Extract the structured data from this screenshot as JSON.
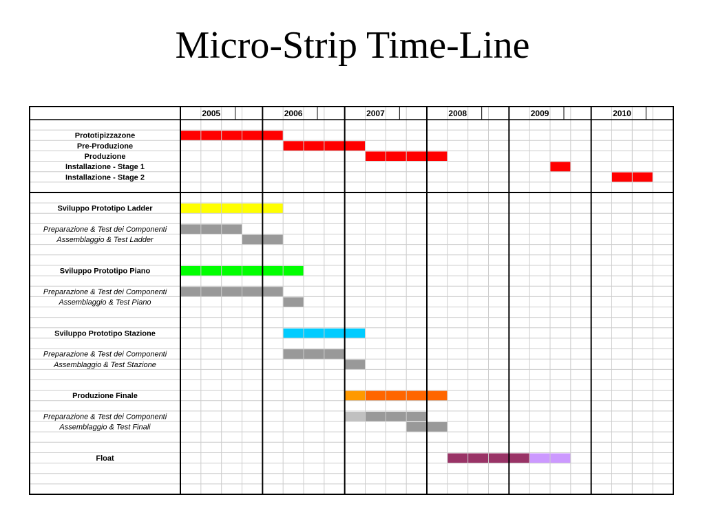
{
  "page_title": "Micro-Strip Time-Line",
  "chart_data": {
    "type": "gantt",
    "title": "Micro-Strip Time-Line",
    "time_unit": "quarter",
    "years": [
      "2005",
      "2006",
      "2007",
      "2008",
      "2009",
      "2010"
    ],
    "start": "2005-Q1",
    "end": "2010-Q4",
    "grid": true,
    "rows": [
      {
        "label": "",
        "style": "plain",
        "bars": []
      },
      {
        "label": "Prototipizzazone",
        "style": "bold",
        "bars": [
          {
            "from": "2005-Q1",
            "to": "2006-Q1",
            "color": "#ff0000"
          }
        ]
      },
      {
        "label": "Pre-Produzione",
        "style": "bold",
        "bars": [
          {
            "from": "2006-Q2",
            "to": "2007-Q1",
            "color": "#ff0000"
          }
        ]
      },
      {
        "label": "Produzione",
        "style": "bold",
        "bars": [
          {
            "from": "2007-Q2",
            "to": "2008-Q1",
            "color": "#ff0000"
          }
        ]
      },
      {
        "label": "Installazione - Stage 1",
        "style": "bold",
        "bars": [
          {
            "from": "2009-Q3",
            "to": "2009-Q3",
            "color": "#ff0000"
          }
        ]
      },
      {
        "label": "Installazione - Stage 2",
        "style": "bold",
        "bars": [
          {
            "from": "2010-Q2",
            "to": "2010-Q3",
            "color": "#ff0000"
          }
        ]
      },
      {
        "label": "",
        "style": "plain",
        "bars": []
      },
      {
        "label": "",
        "style": "plain",
        "bars": []
      },
      {
        "label": "Sviluppo Prototipo Ladder",
        "style": "bold",
        "bars": [
          {
            "from": "2005-Q1",
            "to": "2006-Q1",
            "color": "#ffff00"
          }
        ]
      },
      {
        "label": "",
        "style": "plain",
        "bars": []
      },
      {
        "label": "Preparazione & Test dei Componenti",
        "style": "italic",
        "bars": [
          {
            "from": "2005-Q1",
            "to": "2005-Q3",
            "color": "#999999"
          }
        ]
      },
      {
        "label": "Assemblaggio & Test Ladder",
        "style": "italic",
        "bars": [
          {
            "from": "2005-Q4",
            "to": "2006-Q1",
            "color": "#999999"
          }
        ]
      },
      {
        "label": "",
        "style": "plain",
        "bars": []
      },
      {
        "label": "",
        "style": "plain",
        "bars": []
      },
      {
        "label": "Sviluppo Prototipo Piano",
        "style": "bold",
        "bars": [
          {
            "from": "2005-Q1",
            "to": "2006-Q2",
            "color": "#00ff00"
          }
        ]
      },
      {
        "label": "",
        "style": "plain",
        "bars": []
      },
      {
        "label": "Preparazione & Test dei Componenti",
        "style": "italic",
        "bars": [
          {
            "from": "2005-Q1",
            "to": "2006-Q1",
            "color": "#999999"
          }
        ]
      },
      {
        "label": "Assemblaggio & Test Piano",
        "style": "italic",
        "bars": [
          {
            "from": "2006-Q2",
            "to": "2006-Q2",
            "color": "#999999"
          }
        ]
      },
      {
        "label": "",
        "style": "plain",
        "bars": []
      },
      {
        "label": "",
        "style": "plain",
        "bars": []
      },
      {
        "label": "Sviluppo Prototipo Stazione",
        "style": "bold",
        "bars": [
          {
            "from": "2006-Q2",
            "to": "2007-Q1",
            "color": "#00ccff"
          }
        ]
      },
      {
        "label": "",
        "style": "plain",
        "bars": []
      },
      {
        "label": "Preparazione & Test dei Componenti",
        "style": "italic",
        "bars": [
          {
            "from": "2006-Q2",
            "to": "2006-Q4",
            "color": "#999999"
          }
        ]
      },
      {
        "label": "Assemblaggio & Test Stazione",
        "style": "italic",
        "bars": [
          {
            "from": "2007-Q1",
            "to": "2007-Q1",
            "color": "#999999"
          }
        ]
      },
      {
        "label": "",
        "style": "plain",
        "bars": []
      },
      {
        "label": "",
        "style": "plain",
        "bars": []
      },
      {
        "label": "Produzione Finale",
        "style": "bold",
        "bars": [
          {
            "from": "2007-Q1",
            "to": "2007-Q1",
            "color": "#ff9900"
          },
          {
            "from": "2007-Q2",
            "to": "2008-Q1",
            "color": "#ff6600"
          }
        ]
      },
      {
        "label": "",
        "style": "plain",
        "bars": []
      },
      {
        "label": "Preparazione & Test dei Componenti",
        "style": "italic",
        "bars": [
          {
            "from": "2007-Q1",
            "to": "2007-Q1",
            "color": "#c0c0c0"
          },
          {
            "from": "2007-Q2",
            "to": "2007-Q4",
            "color": "#999999"
          }
        ]
      },
      {
        "label": "Assemblaggio & Test Finali",
        "style": "italic",
        "bars": [
          {
            "from": "2007-Q4",
            "to": "2008-Q1",
            "color": "#999999"
          }
        ]
      },
      {
        "label": "",
        "style": "plain",
        "bars": []
      },
      {
        "label": "",
        "style": "plain",
        "bars": []
      },
      {
        "label": "Float",
        "style": "bold",
        "bars": [
          {
            "from": "2008-Q2",
            "to": "2009-Q1",
            "color": "#993366"
          },
          {
            "from": "2009-Q2",
            "to": "2009-Q3",
            "color": "#cc99ff"
          }
        ]
      },
      {
        "label": "",
        "style": "plain",
        "bars": []
      },
      {
        "label": "",
        "style": "plain",
        "bars": []
      },
      {
        "label": "",
        "style": "plain",
        "bars": []
      }
    ]
  }
}
